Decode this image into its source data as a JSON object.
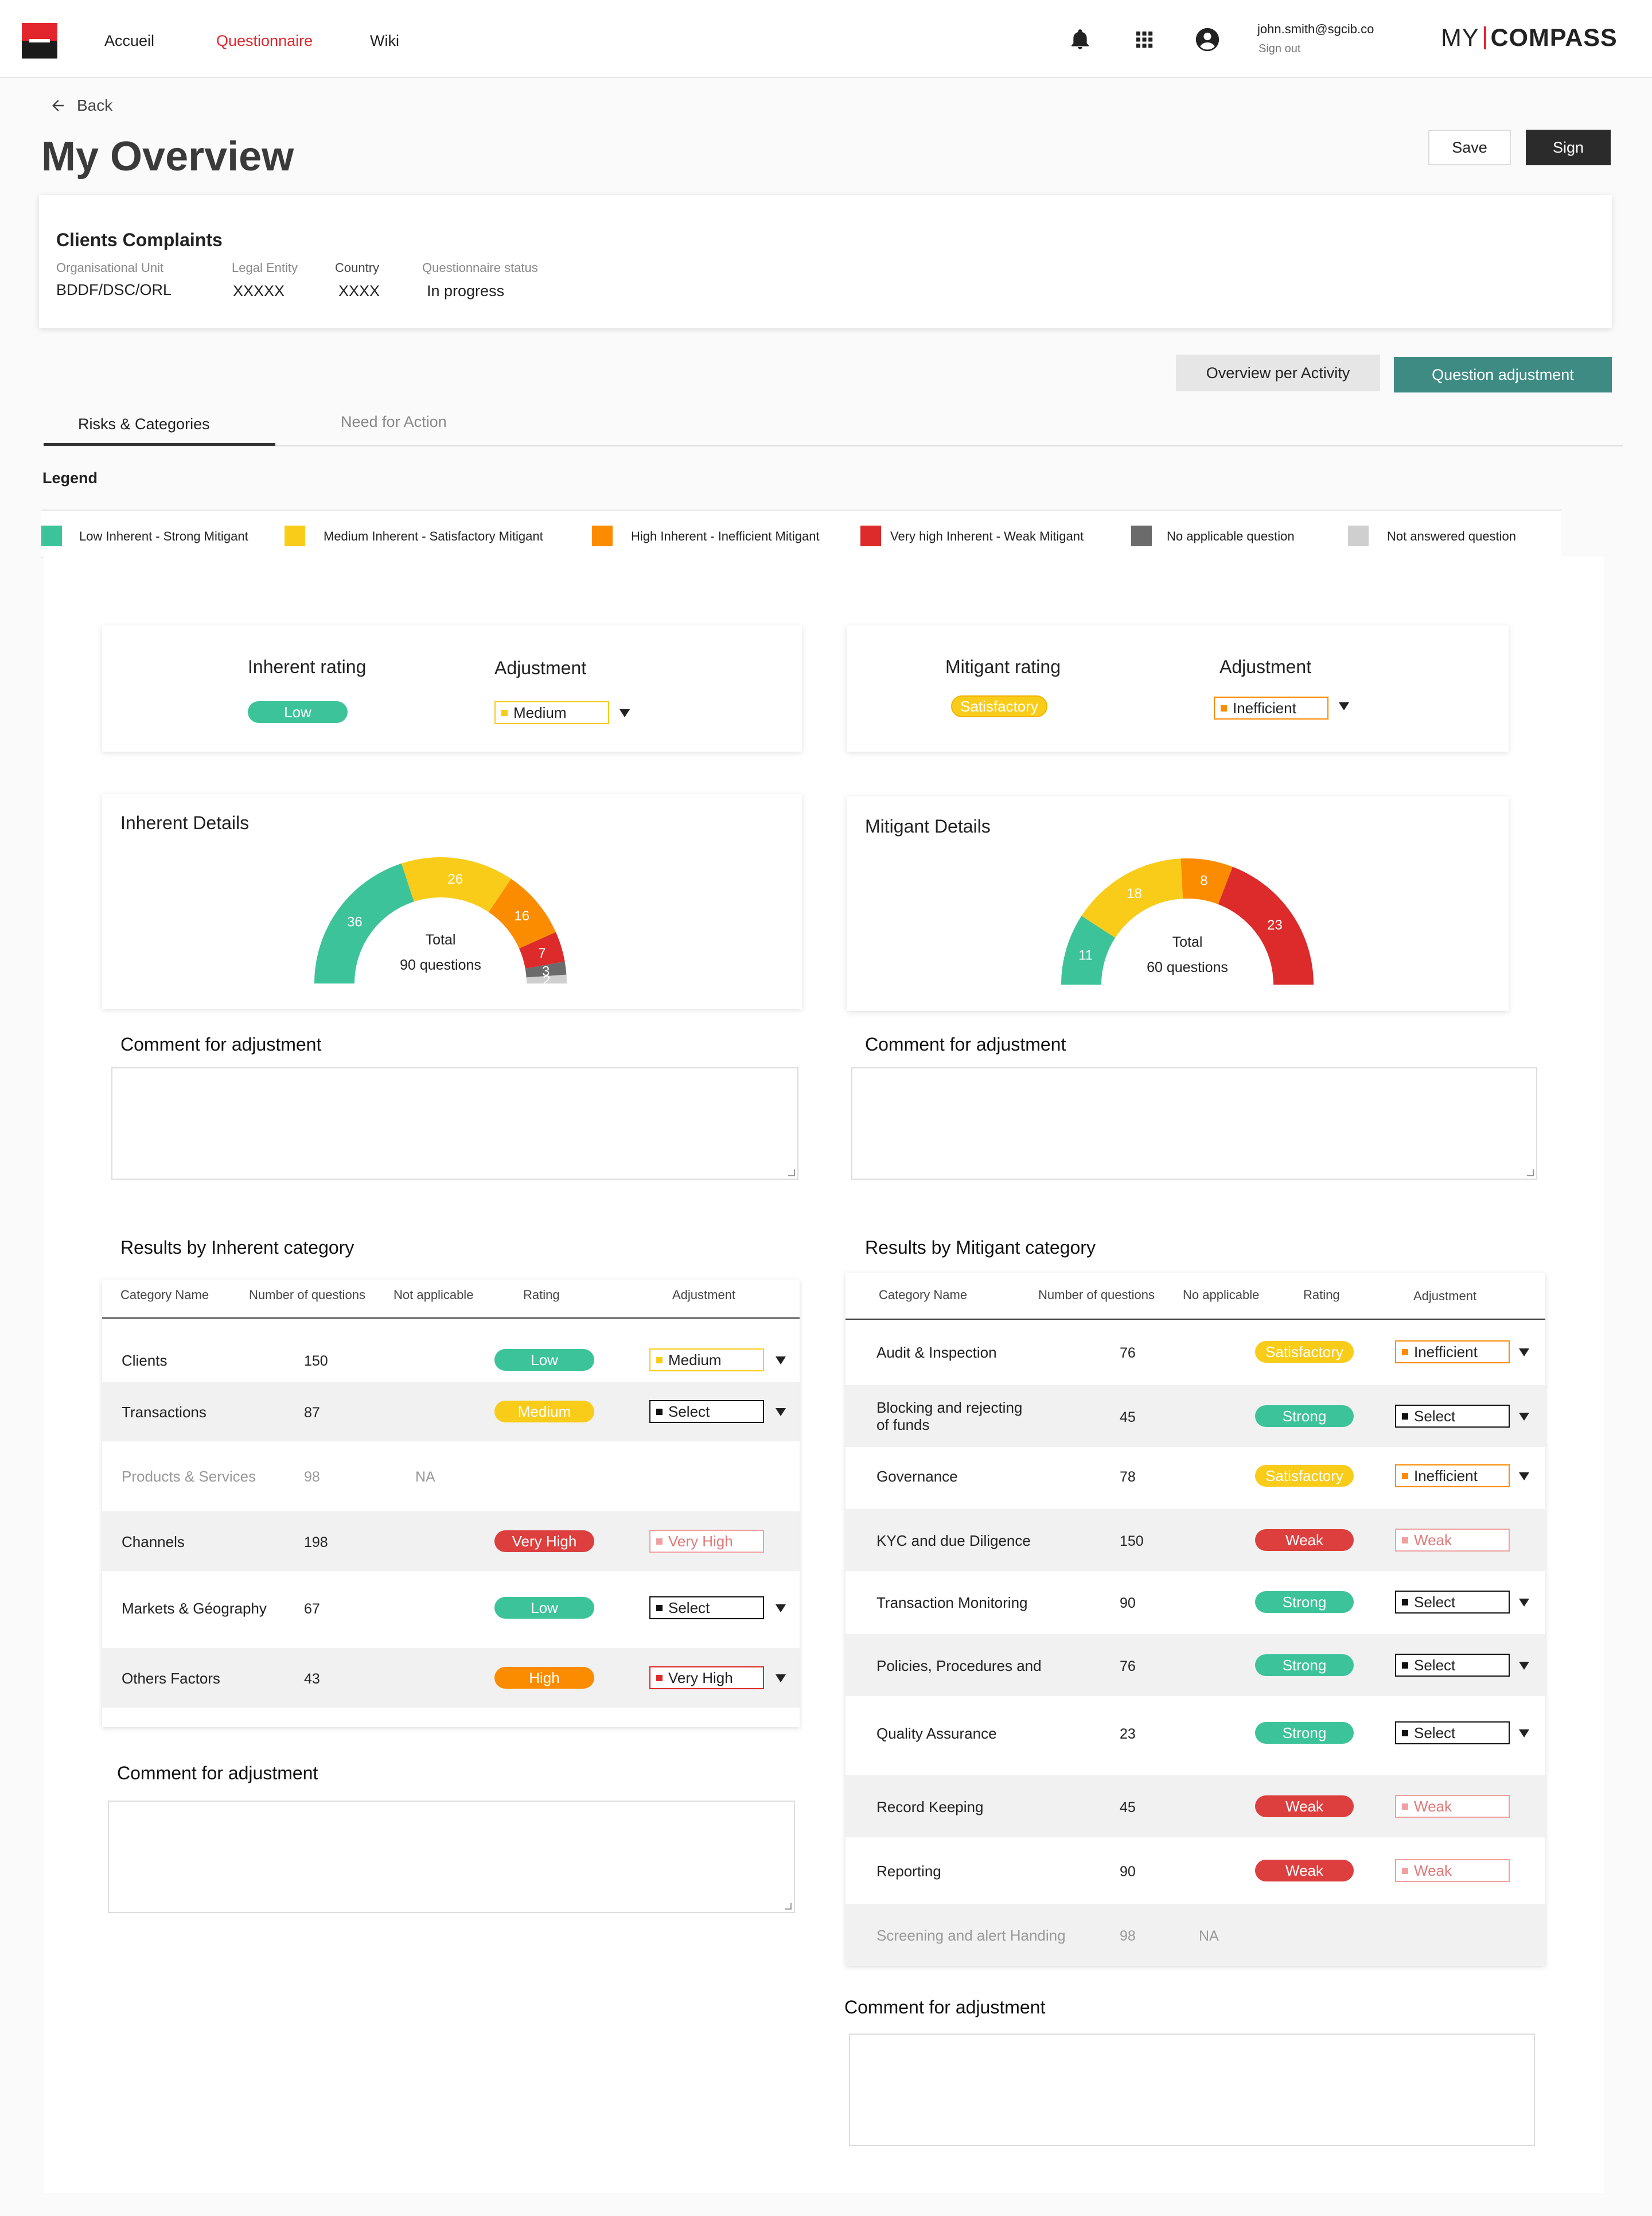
{
  "nav": {
    "items": [
      "Accueil",
      "Questionnaire",
      "Wiki"
    ],
    "active": "Questionnaire",
    "user_email": "john.smith@sgcib.co",
    "sign_out": "Sign out",
    "brand_left": "MY",
    "brand_right": "COMPASS",
    "icons": [
      "bell-icon",
      "apps-grid-icon",
      "account-circle-icon"
    ]
  },
  "header": {
    "back": "Back",
    "title": "My Overview",
    "save": "Save",
    "sign": "Sign"
  },
  "summary": {
    "title": "Clients Complaints",
    "fields": [
      {
        "label": "Organisational Unit",
        "value": "BDDF/DSC/ORL"
      },
      {
        "label": "Legal Entity",
        "value": "XXXXX"
      },
      {
        "label": "Country",
        "value": "XXXX"
      },
      {
        "label": "Questionnaire status",
        "value": "In progress"
      }
    ]
  },
  "actions": {
    "overview_per_activity": "Overview per Activity",
    "question_adjustment": "Question adjustment"
  },
  "tabs": [
    {
      "label": "Risks & Categories",
      "active": true
    },
    {
      "label": "Need for Action",
      "active": false
    }
  ],
  "legend": {
    "title": "Legend",
    "items": [
      {
        "label": "Low Inherent - Strong Mitigant",
        "color": "#3cc39a"
      },
      {
        "label": "Medium Inherent - Satisfactory Mitigant",
        "color": "#f9cc1a"
      },
      {
        "label": "High Inherent - Inefficient Mitigant",
        "color": "#fb8c00"
      },
      {
        "label": "Very high Inherent - Weak Mitigant",
        "color": "#dd2a2a"
      },
      {
        "label": "No applicable question",
        "color": "#6b6b6b"
      },
      {
        "label": "Not answered question",
        "color": "#cfcfcf"
      }
    ]
  },
  "inherent": {
    "rating_label": "Inherent rating",
    "rating_value": "Low",
    "adjustment_label": "Adjustment",
    "adjustment_value": "Medium",
    "details_title": "Inherent Details",
    "total_label": "Total",
    "total_value": "90 questions",
    "comment_label": "Comment for adjustment"
  },
  "mitigant": {
    "rating_label": "Mitigant rating",
    "rating_value": "Satisfactory",
    "adjustment_label": "Adjustment",
    "adjustment_value": "Inefficient",
    "details_title": "Mitigant Details",
    "total_label": "Total",
    "total_value": "60 questions",
    "comment_label": "Comment for adjustment"
  },
  "chart_data": [
    {
      "type": "pie",
      "title": "Inherent Details",
      "style": "half-donut gauge",
      "series": [
        {
          "name": "Low",
          "value": 36,
          "color": "#3cc39a"
        },
        {
          "name": "Medium",
          "value": 26,
          "color": "#f9cc1a"
        },
        {
          "name": "High",
          "value": 16,
          "color": "#fb8c00"
        },
        {
          "name": "Very high",
          "value": 7,
          "color": "#dd2a2a"
        },
        {
          "name": "No applicable",
          "value": 3,
          "color": "#6b6b6b"
        },
        {
          "name": "Not answered",
          "value": 2,
          "color": "#cfcfcf"
        }
      ]
    },
    {
      "type": "pie",
      "title": "Mitigant Details",
      "style": "half-donut gauge",
      "series": [
        {
          "name": "Strong",
          "value": 11,
          "color": "#3cc39a"
        },
        {
          "name": "Satisfactory",
          "value": 18,
          "color": "#f9cc1a"
        },
        {
          "name": "Inefficient",
          "value": 8,
          "color": "#fb8c00"
        },
        {
          "name": "Weak",
          "value": 23,
          "color": "#dd2a2a"
        }
      ]
    }
  ],
  "inherent_table": {
    "title": "Results by Inherent category",
    "headers": [
      "Category Name",
      "Number of questions",
      "Not applicable",
      "Rating",
      "Adjustment"
    ],
    "rows": [
      {
        "name": "Clients",
        "count": "150",
        "na": "",
        "rating": "Low",
        "rating_color": "#3cc39a",
        "adjust": "Medium",
        "adjust_color": "#f9cc1a",
        "muted": false
      },
      {
        "name": "Transactions",
        "count": "87",
        "na": "",
        "rating": "Medium",
        "rating_color": "#f9cc1a",
        "adjust": "Select",
        "adjust_color": "#111111",
        "muted": false
      },
      {
        "name": "Products & Services",
        "count": "98",
        "na": "NA",
        "rating": "",
        "rating_color": "",
        "adjust": "",
        "adjust_color": "",
        "muted": true
      },
      {
        "name": "Channels",
        "count": "198",
        "na": "",
        "rating": "Very High",
        "rating_color": "#dd3e3e",
        "adjust": "Very High",
        "adjust_color": "#f0a0a0",
        "muted": false,
        "adjust_disabled": true
      },
      {
        "name": "Markets & Géography",
        "count": "67",
        "na": "",
        "rating": "Low",
        "rating_color": "#3cc39a",
        "adjust": "Select",
        "adjust_color": "#111111",
        "muted": false
      },
      {
        "name": "Others Factors",
        "count": "43",
        "na": "",
        "rating": "High",
        "rating_color": "#fb8c00",
        "adjust": "Very High",
        "adjust_color": "#dd2a2a",
        "muted": false
      }
    ],
    "comment_label": "Comment for adjustment"
  },
  "mitigant_table": {
    "title": "Results by Mitigant category",
    "headers": [
      "Category Name",
      "Number of questions",
      "No applicable",
      "Rating",
      "Adjustment"
    ],
    "rows": [
      {
        "name": "Audit & Inspection",
        "count": "76",
        "na": "",
        "rating": "Satisfactory",
        "rating_color": "#f9cc1a",
        "adjust": "Inefficient",
        "adjust_color": "#fb8c00",
        "muted": false
      },
      {
        "name": "Blocking and rejecting\nof funds",
        "count": "45",
        "na": "",
        "rating": "Strong",
        "rating_color": "#3cc39a",
        "adjust": "Select",
        "adjust_color": "#111111",
        "muted": false
      },
      {
        "name": "Governance",
        "count": "78",
        "na": "",
        "rating": "Satisfactory",
        "rating_color": "#f9cc1a",
        "adjust": "Inefficient",
        "adjust_color": "#fb8c00",
        "muted": false
      },
      {
        "name": "KYC and due Diligence",
        "count": "150",
        "na": "",
        "rating": "Weak",
        "rating_color": "#dd3e3e",
        "adjust": "Weak",
        "adjust_color": "#f0a0a0",
        "muted": false,
        "adjust_disabled": true
      },
      {
        "name": "Transaction Monitoring",
        "count": "90",
        "na": "",
        "rating": "Strong",
        "rating_color": "#3cc39a",
        "adjust": "Select",
        "adjust_color": "#111111",
        "muted": false
      },
      {
        "name": "Policies, Procedures and",
        "count": "76",
        "na": "",
        "rating": "Strong",
        "rating_color": "#3cc39a",
        "adjust": "Select",
        "adjust_color": "#111111",
        "muted": false
      },
      {
        "name": "Quality Assurance",
        "count": "23",
        "na": "",
        "rating": "Strong",
        "rating_color": "#3cc39a",
        "adjust": "Select",
        "adjust_color": "#111111",
        "muted": false
      },
      {
        "name": "Record Keeping",
        "count": "45",
        "na": "",
        "rating": "Weak",
        "rating_color": "#dd3e3e",
        "adjust": "Weak",
        "adjust_color": "#f0a0a0",
        "muted": false,
        "adjust_disabled": true
      },
      {
        "name": "Reporting",
        "count": "90",
        "na": "",
        "rating": "Weak",
        "rating_color": "#dd3e3e",
        "adjust": "Weak",
        "adjust_color": "#f0a0a0",
        "muted": false,
        "adjust_disabled": true
      },
      {
        "name": "Screening and alert Handing",
        "count": "98",
        "na": "NA",
        "rating": "",
        "rating_color": "",
        "adjust": "",
        "adjust_color": "",
        "muted": true
      }
    ],
    "comment_label": "Comment for adjustment"
  }
}
